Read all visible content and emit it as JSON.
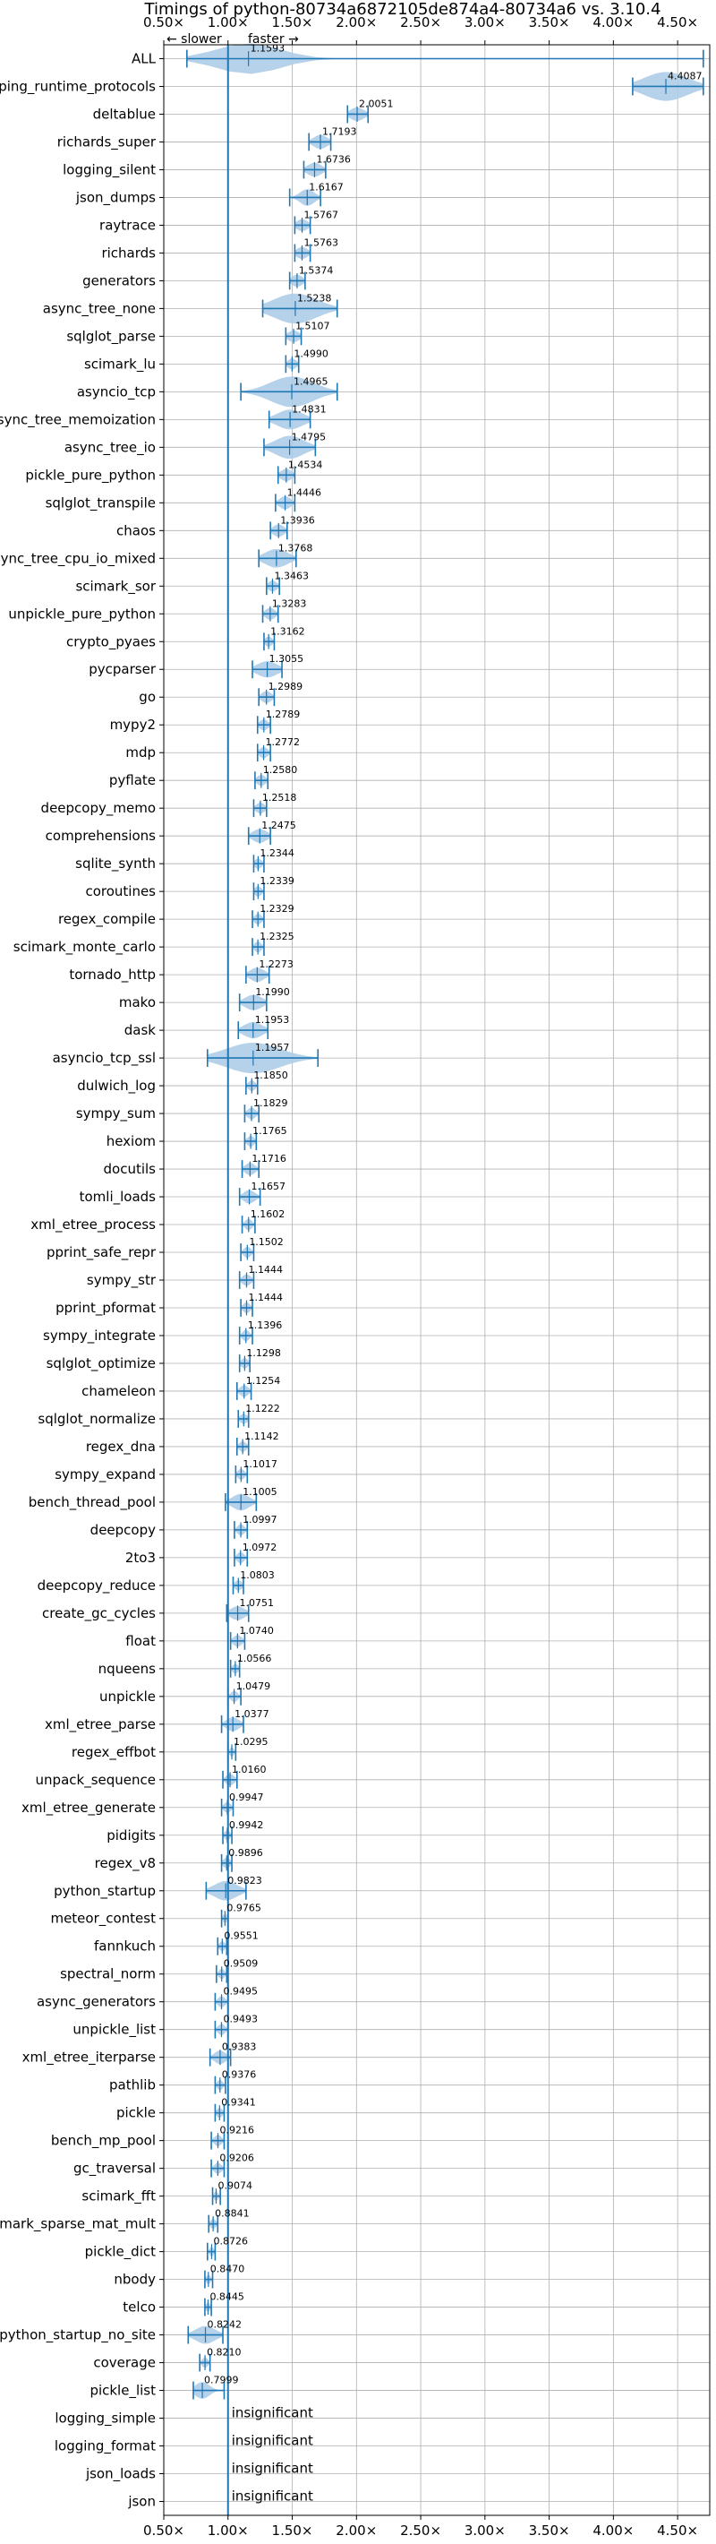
{
  "chart_data": {
    "type": "violin",
    "title": "Timings of python-80734a6872105de874a4-80734a6 vs. 3.10.4",
    "slower_label": "← slower",
    "faster_label": "faster →",
    "xlim": [
      0.5,
      4.75
    ],
    "x_ticks": [
      {
        "value": 0.5,
        "label": "0.50×"
      },
      {
        "value": 1.0,
        "label": "1.00×"
      },
      {
        "value": 1.5,
        "label": "1.50×"
      },
      {
        "value": 2.0,
        "label": "2.00×"
      },
      {
        "value": 2.5,
        "label": "2.50×"
      },
      {
        "value": 3.0,
        "label": "3.00×"
      },
      {
        "value": 3.5,
        "label": "3.50×"
      },
      {
        "value": 4.0,
        "label": "4.00×"
      },
      {
        "value": 4.5,
        "label": "4.50×"
      }
    ],
    "reference_line": 1.0,
    "grid": true,
    "colors": {
      "violin": "#aecde8",
      "line": "#1f77b4",
      "median": "#d62728"
    },
    "insignificant_label": "insignificant",
    "benchmarks": [
      {
        "name": "ALL",
        "value": 1.1593,
        "label": "1.1593",
        "low": 0.68,
        "high": 4.7,
        "spread": 0.45
      },
      {
        "name": "typing_runtime_protocols",
        "value": 4.4087,
        "label": "4.4087",
        "low": 4.15,
        "high": 4.7,
        "spread": 0.3
      },
      {
        "name": "deltablue",
        "value": 2.0051,
        "label": "2.0051",
        "low": 1.93,
        "high": 2.09,
        "spread": 0.1
      },
      {
        "name": "richards_super",
        "value": 1.7193,
        "label": "1.7193",
        "low": 1.63,
        "high": 1.8,
        "spread": 0.1
      },
      {
        "name": "logging_silent",
        "value": 1.6736,
        "label": "1.6736",
        "low": 1.59,
        "high": 1.76,
        "spread": 0.1
      },
      {
        "name": "json_dumps",
        "value": 1.6167,
        "label": "1.6167",
        "low": 1.48,
        "high": 1.72,
        "spread": 0.1
      },
      {
        "name": "raytrace",
        "value": 1.5767,
        "label": "1.5767",
        "low": 1.52,
        "high": 1.64,
        "spread": 0.08
      },
      {
        "name": "richards",
        "value": 1.5763,
        "label": "1.5763",
        "low": 1.52,
        "high": 1.64,
        "spread": 0.08
      },
      {
        "name": "generators",
        "value": 1.5374,
        "label": "1.5374",
        "low": 1.48,
        "high": 1.6,
        "spread": 0.08
      },
      {
        "name": "async_tree_none",
        "value": 1.5238,
        "label": "1.5238",
        "low": 1.27,
        "high": 1.85,
        "spread": 0.3
      },
      {
        "name": "sqlglot_parse",
        "value": 1.5107,
        "label": "1.5107",
        "low": 1.45,
        "high": 1.57,
        "spread": 0.08
      },
      {
        "name": "scimark_lu",
        "value": 1.499,
        "label": "1.4990",
        "low": 1.45,
        "high": 1.55,
        "spread": 0.06
      },
      {
        "name": "asyncio_tcp",
        "value": 1.4965,
        "label": "1.4965",
        "low": 1.1,
        "high": 1.85,
        "spread": 0.3
      },
      {
        "name": "async_tree_memoization",
        "value": 1.4831,
        "label": "1.4831",
        "low": 1.32,
        "high": 1.64,
        "spread": 0.18
      },
      {
        "name": "async_tree_io",
        "value": 1.4795,
        "label": "1.4795",
        "low": 1.28,
        "high": 1.68,
        "spread": 0.2
      },
      {
        "name": "pickle_pure_python",
        "value": 1.4534,
        "label": "1.4534",
        "low": 1.39,
        "high": 1.52,
        "spread": 0.08
      },
      {
        "name": "sqlglot_transpile",
        "value": 1.4446,
        "label": "1.4446",
        "low": 1.37,
        "high": 1.52,
        "spread": 0.08
      },
      {
        "name": "chaos",
        "value": 1.3936,
        "label": "1.3936",
        "low": 1.33,
        "high": 1.46,
        "spread": 0.08
      },
      {
        "name": "async_tree_cpu_io_mixed",
        "value": 1.3768,
        "label": "1.3768",
        "low": 1.24,
        "high": 1.53,
        "spread": 0.16
      },
      {
        "name": "scimark_sor",
        "value": 1.3463,
        "label": "1.3463",
        "low": 1.3,
        "high": 1.4,
        "spread": 0.06
      },
      {
        "name": "unpickle_pure_python",
        "value": 1.3283,
        "label": "1.3283",
        "low": 1.27,
        "high": 1.39,
        "spread": 0.07
      },
      {
        "name": "crypto_pyaes",
        "value": 1.3162,
        "label": "1.3162",
        "low": 1.28,
        "high": 1.36,
        "spread": 0.05
      },
      {
        "name": "pycparser",
        "value": 1.3055,
        "label": "1.3055",
        "low": 1.19,
        "high": 1.42,
        "spread": 0.14
      },
      {
        "name": "go",
        "value": 1.2989,
        "label": "1.2989",
        "low": 1.24,
        "high": 1.36,
        "spread": 0.07
      },
      {
        "name": "mypy2",
        "value": 1.2789,
        "label": "1.2789",
        "low": 1.23,
        "high": 1.33,
        "spread": 0.06
      },
      {
        "name": "mdp",
        "value": 1.2772,
        "label": "1.2772",
        "low": 1.23,
        "high": 1.33,
        "spread": 0.06
      },
      {
        "name": "pyflate",
        "value": 1.258,
        "label": "1.2580",
        "low": 1.21,
        "high": 1.31,
        "spread": 0.06
      },
      {
        "name": "deepcopy_memo",
        "value": 1.2518,
        "label": "1.2518",
        "low": 1.2,
        "high": 1.3,
        "spread": 0.06
      },
      {
        "name": "comprehensions",
        "value": 1.2475,
        "label": "1.2475",
        "low": 1.16,
        "high": 1.33,
        "spread": 0.1
      },
      {
        "name": "sqlite_synth",
        "value": 1.2344,
        "label": "1.2344",
        "low": 1.2,
        "high": 1.28,
        "spread": 0.05
      },
      {
        "name": "coroutines",
        "value": 1.2339,
        "label": "1.2339",
        "low": 1.2,
        "high": 1.28,
        "spread": 0.05
      },
      {
        "name": "regex_compile",
        "value": 1.2329,
        "label": "1.2329",
        "low": 1.19,
        "high": 1.28,
        "spread": 0.05
      },
      {
        "name": "scimark_monte_carlo",
        "value": 1.2325,
        "label": "1.2325",
        "low": 1.19,
        "high": 1.28,
        "spread": 0.05
      },
      {
        "name": "tornado_http",
        "value": 1.2273,
        "label": "1.2273",
        "low": 1.14,
        "high": 1.32,
        "spread": 0.1
      },
      {
        "name": "mako",
        "value": 1.199,
        "label": "1.1990",
        "low": 1.09,
        "high": 1.3,
        "spread": 0.12
      },
      {
        "name": "dask",
        "value": 1.1953,
        "label": "1.1953",
        "low": 1.08,
        "high": 1.31,
        "spread": 0.13
      },
      {
        "name": "asyncio_tcp_ssl",
        "value": 1.1957,
        "label": "1.1957",
        "low": 0.84,
        "high": 1.7,
        "spread": 0.38
      },
      {
        "name": "dulwich_log",
        "value": 1.185,
        "label": "1.1850",
        "low": 1.14,
        "high": 1.23,
        "spread": 0.05
      },
      {
        "name": "sympy_sum",
        "value": 1.1829,
        "label": "1.1829",
        "low": 1.13,
        "high": 1.24,
        "spread": 0.06
      },
      {
        "name": "hexiom",
        "value": 1.1765,
        "label": "1.1765",
        "low": 1.13,
        "high": 1.22,
        "spread": 0.05
      },
      {
        "name": "docutils",
        "value": 1.1716,
        "label": "1.1716",
        "low": 1.11,
        "high": 1.24,
        "spread": 0.07
      },
      {
        "name": "tomli_loads",
        "value": 1.1657,
        "label": "1.1657",
        "low": 1.09,
        "high": 1.25,
        "spread": 0.08
      },
      {
        "name": "xml_etree_process",
        "value": 1.1602,
        "label": "1.1602",
        "low": 1.11,
        "high": 1.21,
        "spread": 0.05
      },
      {
        "name": "pprint_safe_repr",
        "value": 1.1502,
        "label": "1.1502",
        "low": 1.1,
        "high": 1.2,
        "spread": 0.05
      },
      {
        "name": "sympy_str",
        "value": 1.1444,
        "label": "1.1444",
        "low": 1.09,
        "high": 1.2,
        "spread": 0.06
      },
      {
        "name": "pprint_pformat",
        "value": 1.1444,
        "label": "1.1444",
        "low": 1.1,
        "high": 1.19,
        "spread": 0.05
      },
      {
        "name": "sympy_integrate",
        "value": 1.1396,
        "label": "1.1396",
        "low": 1.09,
        "high": 1.19,
        "spread": 0.05
      },
      {
        "name": "sqlglot_optimize",
        "value": 1.1298,
        "label": "1.1298",
        "low": 1.09,
        "high": 1.17,
        "spread": 0.05
      },
      {
        "name": "chameleon",
        "value": 1.1254,
        "label": "1.1254",
        "low": 1.07,
        "high": 1.18,
        "spread": 0.06
      },
      {
        "name": "sqlglot_normalize",
        "value": 1.1222,
        "label": "1.1222",
        "low": 1.08,
        "high": 1.16,
        "spread": 0.05
      },
      {
        "name": "regex_dna",
        "value": 1.1142,
        "label": "1.1142",
        "low": 1.07,
        "high": 1.16,
        "spread": 0.05
      },
      {
        "name": "sympy_expand",
        "value": 1.1017,
        "label": "1.1017",
        "low": 1.06,
        "high": 1.15,
        "spread": 0.05
      },
      {
        "name": "bench_thread_pool",
        "value": 1.1005,
        "label": "1.1005",
        "low": 0.98,
        "high": 1.22,
        "spread": 0.12
      },
      {
        "name": "deepcopy",
        "value": 1.0997,
        "label": "1.0997",
        "low": 1.05,
        "high": 1.15,
        "spread": 0.05
      },
      {
        "name": "2to3",
        "value": 1.0972,
        "label": "1.0972",
        "low": 1.05,
        "high": 1.15,
        "spread": 0.05
      },
      {
        "name": "deepcopy_reduce",
        "value": 1.0803,
        "label": "1.0803",
        "low": 1.04,
        "high": 1.12,
        "spread": 0.05
      },
      {
        "name": "create_gc_cycles",
        "value": 1.0751,
        "label": "1.0751",
        "low": 0.99,
        "high": 1.16,
        "spread": 0.1
      },
      {
        "name": "float",
        "value": 1.074,
        "label": "1.0740",
        "low": 1.02,
        "high": 1.13,
        "spread": 0.06
      },
      {
        "name": "nqueens",
        "value": 1.0566,
        "label": "1.0566",
        "low": 1.02,
        "high": 1.09,
        "spread": 0.04
      },
      {
        "name": "unpickle",
        "value": 1.0479,
        "label": "1.0479",
        "low": 1.0,
        "high": 1.1,
        "spread": 0.05
      },
      {
        "name": "xml_etree_parse",
        "value": 1.0377,
        "label": "1.0377",
        "low": 0.95,
        "high": 1.12,
        "spread": 0.09
      },
      {
        "name": "regex_effbot",
        "value": 1.0295,
        "label": "1.0295",
        "low": 1.0,
        "high": 1.06,
        "spread": 0.03
      },
      {
        "name": "unpack_sequence",
        "value": 1.016,
        "label": "1.0160",
        "low": 0.96,
        "high": 1.07,
        "spread": 0.06
      },
      {
        "name": "xml_etree_generate",
        "value": 0.9947,
        "label": "0.9947",
        "low": 0.95,
        "high": 1.04,
        "spread": 0.05
      },
      {
        "name": "pidigits",
        "value": 0.9942,
        "label": "0.9942",
        "low": 0.96,
        "high": 1.03,
        "spread": 0.04
      },
      {
        "name": "regex_v8",
        "value": 0.9896,
        "label": "0.9896",
        "low": 0.95,
        "high": 1.03,
        "spread": 0.05
      },
      {
        "name": "python_startup",
        "value": 0.9823,
        "label": "0.9823",
        "low": 0.83,
        "high": 1.14,
        "spread": 0.16
      },
      {
        "name": "meteor_contest",
        "value": 0.9765,
        "label": "0.9765",
        "low": 0.95,
        "high": 1.0,
        "spread": 0.03
      },
      {
        "name": "fannkuch",
        "value": 0.9551,
        "label": "0.9551",
        "low": 0.92,
        "high": 0.99,
        "spread": 0.04
      },
      {
        "name": "spectral_norm",
        "value": 0.9509,
        "label": "0.9509",
        "low": 0.91,
        "high": 0.99,
        "spread": 0.04
      },
      {
        "name": "async_generators",
        "value": 0.9495,
        "label": "0.9495",
        "low": 0.9,
        "high": 1.0,
        "spread": 0.05
      },
      {
        "name": "unpickle_list",
        "value": 0.9493,
        "label": "0.9493",
        "low": 0.9,
        "high": 1.0,
        "spread": 0.05
      },
      {
        "name": "xml_etree_iterparse",
        "value": 0.9383,
        "label": "0.9383",
        "low": 0.86,
        "high": 1.02,
        "spread": 0.08
      },
      {
        "name": "pathlib",
        "value": 0.9376,
        "label": "0.9376",
        "low": 0.9,
        "high": 0.98,
        "spread": 0.04
      },
      {
        "name": "pickle",
        "value": 0.9341,
        "label": "0.9341",
        "low": 0.9,
        "high": 0.97,
        "spread": 0.04
      },
      {
        "name": "bench_mp_pool",
        "value": 0.9216,
        "label": "0.9216",
        "low": 0.87,
        "high": 0.97,
        "spread": 0.05
      },
      {
        "name": "gc_traversal",
        "value": 0.9206,
        "label": "0.9206",
        "low": 0.87,
        "high": 0.97,
        "spread": 0.05
      },
      {
        "name": "scimark_fft",
        "value": 0.9074,
        "label": "0.9074",
        "low": 0.88,
        "high": 0.94,
        "spread": 0.03
      },
      {
        "name": "scimark_sparse_mat_mult",
        "value": 0.8841,
        "label": "0.8841",
        "low": 0.85,
        "high": 0.92,
        "spread": 0.04
      },
      {
        "name": "pickle_dict",
        "value": 0.8726,
        "label": "0.8726",
        "low": 0.84,
        "high": 0.9,
        "spread": 0.03
      },
      {
        "name": "nbody",
        "value": 0.847,
        "label": "0.8470",
        "low": 0.82,
        "high": 0.88,
        "spread": 0.03
      },
      {
        "name": "telco",
        "value": 0.8445,
        "label": "0.8445",
        "low": 0.82,
        "high": 0.87,
        "spread": 0.03
      },
      {
        "name": "python_startup_no_site",
        "value": 0.8242,
        "label": "0.8242",
        "low": 0.69,
        "high": 0.96,
        "spread": 0.14
      },
      {
        "name": "coverage",
        "value": 0.821,
        "label": "0.8210",
        "low": 0.78,
        "high": 0.86,
        "spread": 0.04
      },
      {
        "name": "pickle_list",
        "value": 0.7999,
        "label": "0.7999",
        "low": 0.73,
        "high": 0.97,
        "spread": 0.1
      },
      {
        "name": "logging_simple",
        "insignificant": true
      },
      {
        "name": "logging_format",
        "insignificant": true
      },
      {
        "name": "json_loads",
        "insignificant": true
      },
      {
        "name": "json",
        "insignificant": true
      }
    ]
  }
}
